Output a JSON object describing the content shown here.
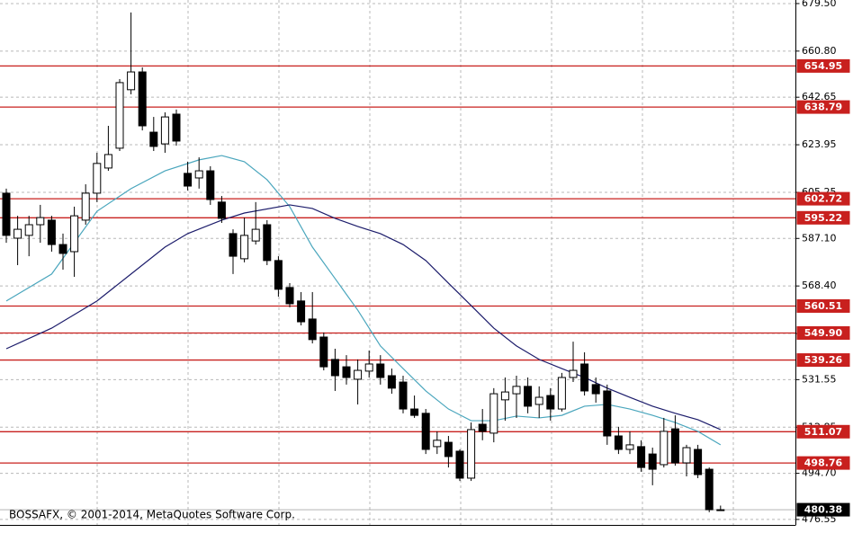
{
  "chart_data": {
    "type": "candlestick",
    "caption": "BOSSAFX, © 2001-2014, MetaQuotes Software Corp.",
    "ylim": [
      474.4,
      680.9
    ],
    "yticks": [
      {
        "value": 679.5,
        "label": "679.50"
      },
      {
        "value": 660.8,
        "label": "660.80"
      },
      {
        "value": 642.65,
        "label": "642.65"
      },
      {
        "value": 623.95,
        "label": "623.95"
      },
      {
        "value": 605.25,
        "label": "605.25"
      },
      {
        "value": 587.1,
        "label": "587.10"
      },
      {
        "value": 568.4,
        "label": "568.40"
      },
      {
        "value": 549.7,
        "label": "549.70"
      },
      {
        "value": 531.55,
        "label": "531.55"
      },
      {
        "value": 512.85,
        "label": "512.85"
      },
      {
        "value": 494.7,
        "label": "494.70"
      },
      {
        "value": 476.55,
        "label": "476.55"
      }
    ],
    "grid": true,
    "up_color": "#ffffff",
    "down_color": "#000000",
    "level_color": "#c8201e",
    "levels": [
      {
        "value": 654.95,
        "label": "654.95"
      },
      {
        "value": 638.79,
        "label": "638.79"
      },
      {
        "value": 602.72,
        "label": "602.72"
      },
      {
        "value": 595.22,
        "label": "595.22"
      },
      {
        "value": 560.51,
        "label": "560.51"
      },
      {
        "value": 549.9,
        "label": "549.90"
      },
      {
        "value": 539.26,
        "label": "539.26"
      },
      {
        "value": 511.07,
        "label": "511.07"
      },
      {
        "value": 498.76,
        "label": "498.76"
      }
    ],
    "last_price": 480.38,
    "open": [
      604.9,
      587.2,
      588.3,
      592.5,
      594.3,
      584.7,
      581.9,
      594.3,
      604.9,
      614.8,
      622.6,
      645.6,
      652.6,
      628.9,
      624.3,
      636.0,
      612.7,
      610.9,
      613.7,
      601.4,
      589.0,
      579.1,
      586.1,
      592.5,
      578.4,
      567.8,
      562.5,
      555.4,
      548.3,
      539.5,
      536.6,
      531.7,
      534.9,
      537.7,
      533.1,
      530.6,
      520.0,
      518.3,
      505.2,
      506.9,
      503.4,
      492.8,
      514.0,
      510.5,
      523.6,
      526.0,
      528.9,
      521.8,
      525.3,
      520.0,
      532.4,
      537.7,
      529.6,
      527.1,
      509.4,
      504.1,
      505.2,
      502.3,
      498.1,
      512.2,
      498.8,
      504.1,
      496.3,
      480.38
    ],
    "high": [
      606.7,
      596.0,
      596.0,
      600.3,
      596.0,
      589.0,
      599.6,
      608.4,
      620.8,
      631.4,
      649.8,
      676.0,
      654.4,
      634.9,
      636.7,
      637.8,
      617.3,
      619.0,
      615.5,
      603.8,
      590.7,
      595.3,
      601.4,
      594.3,
      580.1,
      569.5,
      566.0,
      566.0,
      550.1,
      543.7,
      541.2,
      539.5,
      543.0,
      541.2,
      535.9,
      533.1,
      525.3,
      520.0,
      511.2,
      509.4,
      504.1,
      514.7,
      520.0,
      528.2,
      532.4,
      533.1,
      532.4,
      528.9,
      528.2,
      534.2,
      546.5,
      542.3,
      532.4,
      529.6,
      513.0,
      511.2,
      507.7,
      504.8,
      516.5,
      517.5,
      505.9,
      505.9,
      497.0,
      482.0
    ],
    "low": [
      585.4,
      576.6,
      580.1,
      585.4,
      581.9,
      574.8,
      572.0,
      592.5,
      601.4,
      613.7,
      621.5,
      643.8,
      629.6,
      621.5,
      620.8,
      623.6,
      606.0,
      606.7,
      600.3,
      593.2,
      573.1,
      577.7,
      584.7,
      576.6,
      564.2,
      560.0,
      552.9,
      545.8,
      535.2,
      527.1,
      529.6,
      521.8,
      532.4,
      529.6,
      526.0,
      518.3,
      516.5,
      502.3,
      502.3,
      497.0,
      491.7,
      491.7,
      507.7,
      506.9,
      515.4,
      516.5,
      518.3,
      516.5,
      515.4,
      519.0,
      530.6,
      525.3,
      522.5,
      505.9,
      502.3,
      502.3,
      495.3,
      490.0,
      497.0,
      497.7,
      493.5,
      492.8,
      479.4,
      480.38
    ],
    "close": [
      588.3,
      590.7,
      592.5,
      595.3,
      584.7,
      581.2,
      596.0,
      604.9,
      616.6,
      620.1,
      648.4,
      652.6,
      631.4,
      623.3,
      634.9,
      625.4,
      607.7,
      613.7,
      602.4,
      595.0,
      580.1,
      588.3,
      590.7,
      578.4,
      567.1,
      561.4,
      554.3,
      547.3,
      536.6,
      533.1,
      532.4,
      535.2,
      537.7,
      532.4,
      528.2,
      520.0,
      517.5,
      504.1,
      507.7,
      501.3,
      492.8,
      511.9,
      511.2,
      526.0,
      526.7,
      528.9,
      521.1,
      524.6,
      520.0,
      532.4,
      535.2,
      527.1,
      526.0,
      509.4,
      504.1,
      505.9,
      497.0,
      496.3,
      511.2,
      498.8,
      504.8,
      494.2,
      480.38,
      480.38
    ],
    "lines": [
      {
        "color": "#4aa6bd",
        "x": [
          0,
          4,
          8,
          11,
          14,
          17,
          19,
          21,
          23,
          25,
          27,
          29,
          31,
          33,
          35,
          37,
          39,
          41,
          43,
          45,
          47,
          49,
          51,
          53,
          55,
          57,
          59,
          61,
          63
        ],
        "values": [
          562.5,
          573.1,
          597.8,
          606.7,
          613.7,
          618.0,
          619.7,
          617.3,
          610.2,
          599.6,
          583.7,
          571.3,
          558.9,
          544.8,
          535.9,
          527.1,
          520.0,
          515.4,
          515.4,
          517.2,
          516.5,
          517.5,
          521.1,
          521.8,
          520.0,
          517.5,
          514.7,
          511.2,
          505.9
        ]
      },
      {
        "color": "#1c1c6b",
        "x": [
          0,
          4,
          8,
          11,
          14,
          16,
          19,
          21,
          25,
          27,
          29,
          31,
          33,
          35,
          37,
          39,
          41,
          43,
          45,
          47,
          49,
          51,
          53,
          55,
          57,
          59,
          61,
          63
        ],
        "values": [
          543.7,
          551.8,
          562.5,
          573.1,
          583.7,
          589.0,
          594.3,
          597.1,
          600.3,
          598.9,
          595.0,
          591.8,
          589.0,
          584.7,
          578.4,
          569.5,
          560.7,
          551.8,
          544.8,
          539.5,
          535.9,
          532.4,
          528.2,
          524.6,
          521.1,
          518.3,
          515.8,
          511.9
        ]
      }
    ]
  }
}
